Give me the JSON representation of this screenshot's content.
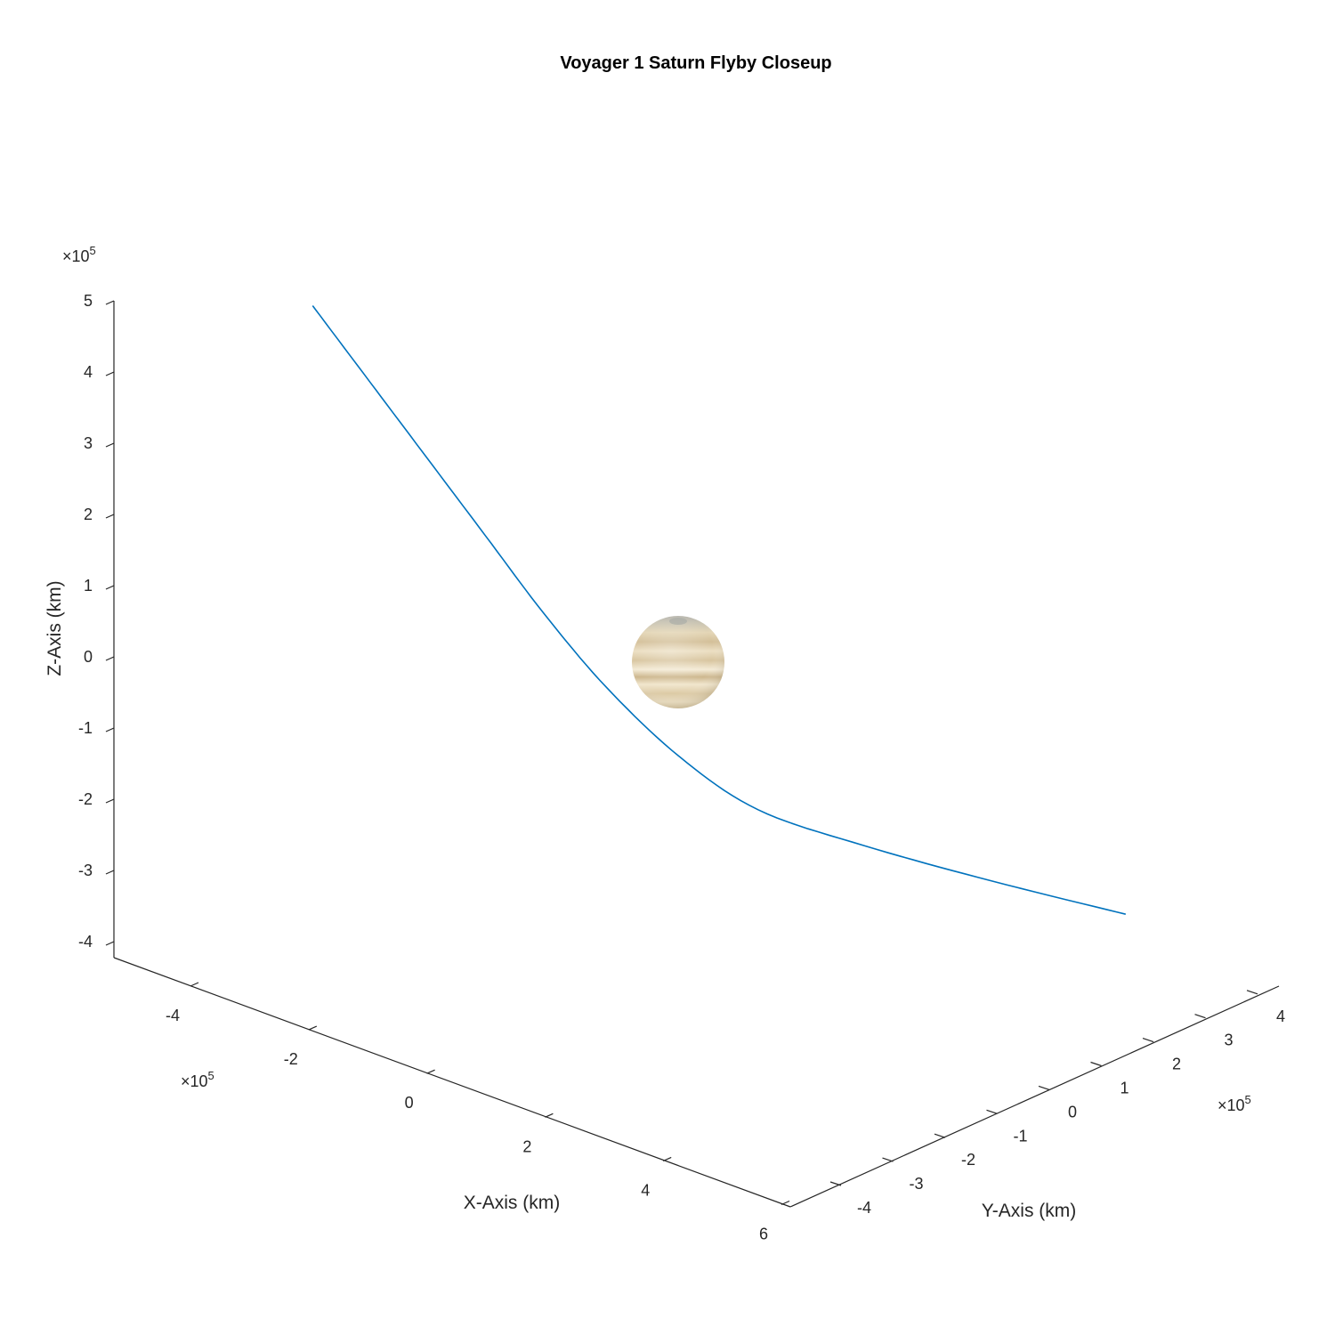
{
  "chart_data": {
    "type": "line",
    "projection": "3d",
    "title": "Voyager 1 Saturn Flyby Closeup",
    "xlabel": "X-Axis (km)",
    "ylabel": "Y-Axis (km)",
    "zlabel": "Z-Axis (km)",
    "x_multiplier": "×10",
    "x_multiplier_exp": "5",
    "y_multiplier": "×10",
    "y_multiplier_exp": "5",
    "z_multiplier": "×10",
    "z_multiplier_exp": "5",
    "xticks": [
      "-4",
      "-2",
      "0",
      "2",
      "4",
      "6"
    ],
    "yticks": [
      "-4",
      "-3",
      "-2",
      "-1",
      "0",
      "1",
      "2",
      "3",
      "4"
    ],
    "zticks": [
      "5",
      "4",
      "3",
      "2",
      "1",
      "0",
      "-1",
      "-2",
      "-3",
      "-4"
    ],
    "xlim": [
      -5,
      6
    ],
    "ylim": [
      -4.5,
      4.5
    ],
    "zlim": [
      -4.25,
      5
    ],
    "grid": false,
    "line_color": "#0072BD",
    "planet": {
      "name": "Saturn",
      "center": [
        0,
        0,
        0
      ],
      "colors": [
        "#e9dcc0",
        "#d4c09a",
        "#f3ead4",
        "#c8b48b"
      ]
    },
    "series": [
      {
        "name": "",
        "points": [
          {
            "x": -4.6,
            "y": -1.8,
            "z": 4.2
          },
          {
            "x": -3.8,
            "y": -1.6,
            "z": 3.3
          },
          {
            "x": -3.0,
            "y": -1.4,
            "z": 2.4
          },
          {
            "x": -2.2,
            "y": -1.2,
            "z": 1.5
          },
          {
            "x": -1.4,
            "y": -1.0,
            "z": 0.6
          },
          {
            "x": -0.6,
            "y": -0.7,
            "z": -0.3
          },
          {
            "x": 0.2,
            "y": -0.2,
            "z": -1.2
          },
          {
            "x": 1.0,
            "y": 0.4,
            "z": -1.9
          },
          {
            "x": 2.0,
            "y": 1.3,
            "z": -2.4
          },
          {
            "x": 3.2,
            "y": 2.4,
            "z": -2.9
          },
          {
            "x": 4.4,
            "y": 3.6,
            "z": -3.4
          }
        ]
      }
    ]
  }
}
